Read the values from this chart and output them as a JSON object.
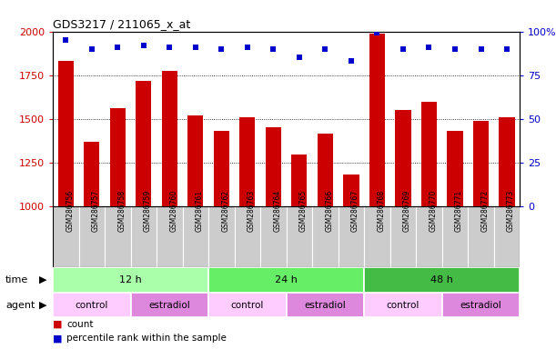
{
  "title": "GDS3217 / 211065_x_at",
  "samples": [
    "GSM286756",
    "GSM286757",
    "GSM286758",
    "GSM286759",
    "GSM286760",
    "GSM286761",
    "GSM286762",
    "GSM286763",
    "GSM286764",
    "GSM286765",
    "GSM286766",
    "GSM286767",
    "GSM286768",
    "GSM286769",
    "GSM286770",
    "GSM286771",
    "GSM286772",
    "GSM286773"
  ],
  "counts": [
    1830,
    1370,
    1560,
    1715,
    1775,
    1520,
    1430,
    1510,
    1450,
    1295,
    1415,
    1180,
    1985,
    1550,
    1595,
    1430,
    1490,
    1510
  ],
  "percentile_ranks": [
    95,
    90,
    91,
    92,
    91,
    91,
    90,
    91,
    90,
    85,
    90,
    83,
    99,
    90,
    91,
    90,
    90,
    90
  ],
  "bar_color": "#cc0000",
  "dot_color": "#0000cc",
  "ylim_left": [
    1000,
    2000
  ],
  "ylim_right": [
    0,
    100
  ],
  "yticks_left": [
    1000,
    1250,
    1500,
    1750,
    2000
  ],
  "yticks_right": [
    0,
    25,
    50,
    75,
    100
  ],
  "ylabel_left_color": "#cc0000",
  "ylabel_right_color": "#0000cc",
  "time_groups": [
    {
      "label": "12 h",
      "start": 0,
      "end": 6,
      "color": "#aaffaa"
    },
    {
      "label": "24 h",
      "start": 6,
      "end": 12,
      "color": "#66ee66"
    },
    {
      "label": "48 h",
      "start": 12,
      "end": 18,
      "color": "#44bb44"
    }
  ],
  "agent_groups": [
    {
      "label": "control",
      "start": 0,
      "end": 3,
      "color": "#ffccff"
    },
    {
      "label": "estradiol",
      "start": 3,
      "end": 6,
      "color": "#dd88dd"
    },
    {
      "label": "control",
      "start": 6,
      "end": 9,
      "color": "#ffccff"
    },
    {
      "label": "estradiol",
      "start": 9,
      "end": 12,
      "color": "#dd88dd"
    },
    {
      "label": "control",
      "start": 12,
      "end": 15,
      "color": "#ffccff"
    },
    {
      "label": "estradiol",
      "start": 15,
      "end": 18,
      "color": "#dd88dd"
    }
  ],
  "legend_count_label": "count",
  "legend_pct_label": "percentile rank within the sample",
  "background_color": "#ffffff",
  "tick_label_area_color": "#cccccc",
  "n_samples": 18
}
